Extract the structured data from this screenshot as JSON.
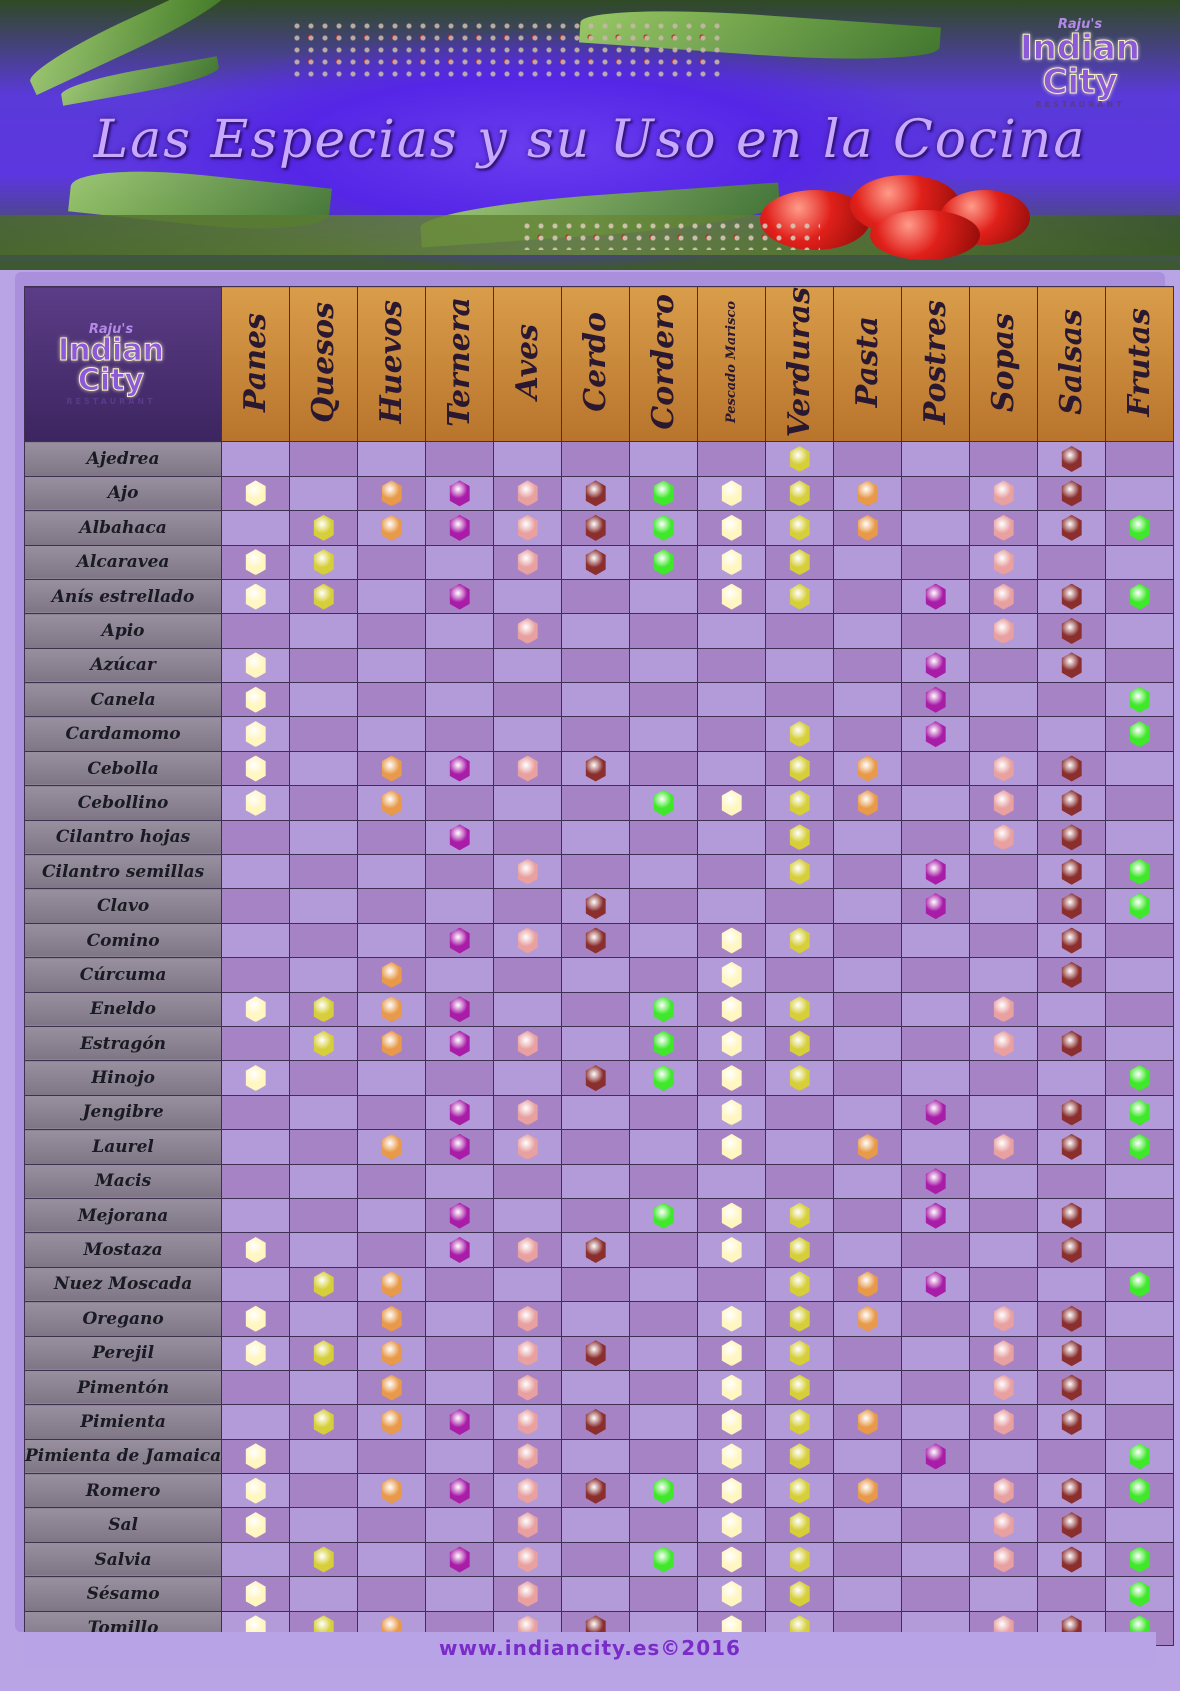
{
  "title": "Las Especias y su Uso en la Cocina",
  "logo": {
    "line1": "Raju's",
    "line2": "Indian",
    "line3": "City",
    "line4": "RESTAURANT"
  },
  "columns": [
    "Panes",
    "Quesos",
    "Huevos",
    "Ternera",
    "Aves",
    "Cerdo",
    "Cordero",
    "Pescado Marisco",
    "Verduras",
    "Pasta",
    "Postres",
    "Sopas",
    "Salsas",
    "Frutas"
  ],
  "column_colors": [
    "#fff6c2",
    "#d6cf3a",
    "#e89a4a",
    "#a81ca8",
    "#e8a0a0",
    "#8a2e2e",
    "#3fe82a",
    "#fff6c2",
    "#d6cf3a",
    "#e89a4a",
    "#a81ca8",
    "#e8a0a0",
    "#8a2e2e",
    "#3fe82a"
  ],
  "rows": [
    {
      "name": "Ajedrea",
      "marks": [
        0,
        0,
        0,
        0,
        0,
        0,
        0,
        0,
        1,
        0,
        0,
        0,
        1,
        0
      ]
    },
    {
      "name": "Ajo",
      "marks": [
        1,
        0,
        1,
        1,
        1,
        1,
        1,
        1,
        1,
        1,
        0,
        1,
        1,
        0
      ]
    },
    {
      "name": "Albahaca",
      "marks": [
        0,
        1,
        1,
        1,
        1,
        1,
        1,
        1,
        1,
        1,
        0,
        1,
        1,
        1
      ]
    },
    {
      "name": "Alcaravea",
      "marks": [
        1,
        1,
        0,
        0,
        1,
        1,
        1,
        1,
        1,
        0,
        0,
        1,
        0,
        0
      ]
    },
    {
      "name": "Anís estrellado",
      "marks": [
        1,
        1,
        0,
        1,
        0,
        0,
        0,
        1,
        1,
        0,
        1,
        1,
        1,
        1
      ]
    },
    {
      "name": "Apio",
      "marks": [
        0,
        0,
        0,
        0,
        1,
        0,
        0,
        0,
        0,
        0,
        0,
        1,
        1,
        0
      ]
    },
    {
      "name": "Azúcar",
      "marks": [
        1,
        0,
        0,
        0,
        0,
        0,
        0,
        0,
        0,
        0,
        1,
        0,
        1,
        0
      ]
    },
    {
      "name": "Canela",
      "marks": [
        1,
        0,
        0,
        0,
        0,
        0,
        0,
        0,
        0,
        0,
        1,
        0,
        0,
        1
      ]
    },
    {
      "name": "Cardamomo",
      "marks": [
        1,
        0,
        0,
        0,
        0,
        0,
        0,
        0,
        1,
        0,
        1,
        0,
        0,
        1
      ]
    },
    {
      "name": "Cebolla",
      "marks": [
        1,
        0,
        1,
        1,
        1,
        1,
        0,
        0,
        1,
        1,
        0,
        1,
        1,
        0
      ]
    },
    {
      "name": "Cebollino",
      "marks": [
        1,
        0,
        1,
        0,
        0,
        0,
        1,
        1,
        1,
        1,
        0,
        1,
        1,
        0
      ]
    },
    {
      "name": "Cilantro hojas",
      "marks": [
        0,
        0,
        0,
        1,
        0,
        0,
        0,
        0,
        1,
        0,
        0,
        1,
        1,
        0
      ]
    },
    {
      "name": "Cilantro semillas",
      "marks": [
        0,
        0,
        0,
        0,
        1,
        0,
        0,
        0,
        1,
        0,
        1,
        0,
        1,
        1
      ]
    },
    {
      "name": "Clavo",
      "marks": [
        0,
        0,
        0,
        0,
        0,
        1,
        0,
        0,
        0,
        0,
        1,
        0,
        1,
        1
      ]
    },
    {
      "name": "Comino",
      "marks": [
        0,
        0,
        0,
        1,
        1,
        1,
        0,
        1,
        1,
        0,
        0,
        0,
        1,
        0
      ]
    },
    {
      "name": "Cúrcuma",
      "marks": [
        0,
        0,
        1,
        0,
        0,
        0,
        0,
        1,
        0,
        0,
        0,
        0,
        1,
        0
      ]
    },
    {
      "name": "Eneldo",
      "marks": [
        1,
        1,
        1,
        1,
        0,
        0,
        1,
        1,
        1,
        0,
        0,
        1,
        0,
        0
      ]
    },
    {
      "name": "Estragón",
      "marks": [
        0,
        1,
        1,
        1,
        1,
        0,
        1,
        1,
        1,
        0,
        0,
        1,
        1,
        0
      ]
    },
    {
      "name": "Hinojo",
      "marks": [
        1,
        0,
        0,
        0,
        0,
        1,
        1,
        1,
        1,
        0,
        0,
        0,
        0,
        1
      ]
    },
    {
      "name": "Jengibre",
      "marks": [
        0,
        0,
        0,
        1,
        1,
        0,
        0,
        1,
        0,
        0,
        1,
        0,
        1,
        1
      ]
    },
    {
      "name": "Laurel",
      "marks": [
        0,
        0,
        1,
        1,
        1,
        0,
        0,
        1,
        0,
        1,
        0,
        1,
        1,
        1
      ]
    },
    {
      "name": "Macis",
      "marks": [
        0,
        0,
        0,
        0,
        0,
        0,
        0,
        0,
        0,
        0,
        1,
        0,
        0,
        0
      ]
    },
    {
      "name": "Mejorana",
      "marks": [
        0,
        0,
        0,
        1,
        0,
        0,
        1,
        1,
        1,
        0,
        1,
        0,
        1,
        0
      ]
    },
    {
      "name": "Mostaza",
      "marks": [
        1,
        0,
        0,
        1,
        1,
        1,
        0,
        1,
        1,
        0,
        0,
        0,
        1,
        0
      ]
    },
    {
      "name": "Nuez Moscada",
      "marks": [
        0,
        1,
        1,
        0,
        0,
        0,
        0,
        0,
        1,
        1,
        1,
        0,
        0,
        1
      ]
    },
    {
      "name": "Oregano",
      "marks": [
        1,
        0,
        1,
        0,
        1,
        0,
        0,
        1,
        1,
        1,
        0,
        1,
        1,
        0
      ]
    },
    {
      "name": "Perejil",
      "marks": [
        1,
        1,
        1,
        0,
        1,
        1,
        0,
        1,
        1,
        0,
        0,
        1,
        1,
        0
      ]
    },
    {
      "name": "Pimentón",
      "marks": [
        0,
        0,
        1,
        0,
        1,
        0,
        0,
        1,
        1,
        0,
        0,
        1,
        1,
        0
      ]
    },
    {
      "name": "Pimienta",
      "marks": [
        0,
        1,
        1,
        1,
        1,
        1,
        0,
        1,
        1,
        1,
        0,
        1,
        1,
        0
      ]
    },
    {
      "name": "Pimienta de Jamaica",
      "marks": [
        1,
        0,
        0,
        0,
        1,
        0,
        0,
        1,
        1,
        0,
        1,
        0,
        0,
        1
      ]
    },
    {
      "name": "Romero",
      "marks": [
        1,
        0,
        1,
        1,
        1,
        1,
        1,
        1,
        1,
        1,
        0,
        1,
        1,
        1
      ]
    },
    {
      "name": "Sal",
      "marks": [
        1,
        0,
        0,
        0,
        1,
        0,
        0,
        1,
        1,
        0,
        0,
        1,
        1,
        0
      ]
    },
    {
      "name": "Salvia",
      "marks": [
        0,
        1,
        0,
        1,
        1,
        0,
        1,
        1,
        1,
        0,
        0,
        1,
        1,
        1
      ]
    },
    {
      "name": "Sésamo",
      "marks": [
        1,
        0,
        0,
        0,
        1,
        0,
        0,
        1,
        1,
        0,
        0,
        0,
        0,
        1
      ]
    },
    {
      "name": "Tomillo",
      "marks": [
        1,
        1,
        1,
        0,
        1,
        1,
        0,
        1,
        1,
        0,
        0,
        1,
        1,
        1
      ]
    }
  ],
  "footer": "www.indiancity.es©2016"
}
